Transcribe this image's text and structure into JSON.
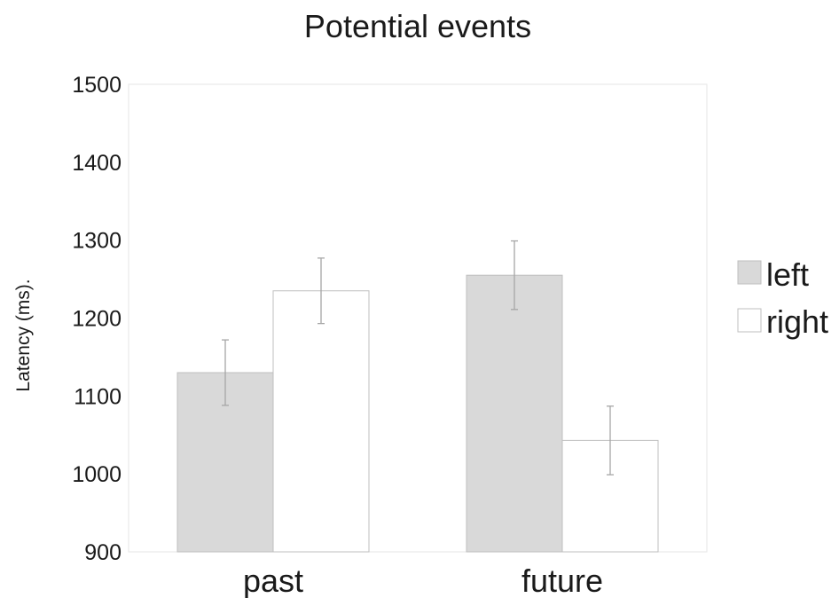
{
  "chart_data": {
    "type": "bar",
    "title": "Potential events",
    "xlabel": "",
    "ylabel": "Latency (ms).",
    "ylim": [
      900,
      1500
    ],
    "yticks": [
      "900",
      "1000",
      "1100",
      "1200",
      "1300",
      "1400",
      "1500"
    ],
    "grid": false,
    "legend_position": "right",
    "categories": [
      "past",
      "future"
    ],
    "series": [
      {
        "name": "left",
        "values": [
          1130,
          1255
        ],
        "error": [
          42,
          44
        ],
        "color": "#d9d9d9"
      },
      {
        "name": "right",
        "values": [
          1235,
          1043
        ],
        "error": [
          42,
          44
        ],
        "color": "#ffffff"
      }
    ]
  }
}
